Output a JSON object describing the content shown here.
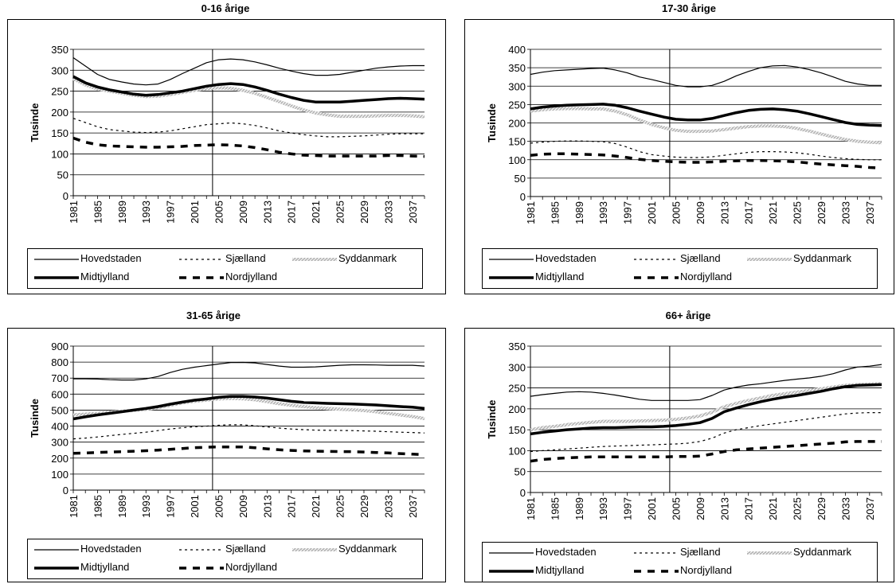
{
  "legend_labels": [
    "Hovedstaden",
    "Sjælland",
    "Syddanmark",
    "Midtjylland",
    "Nordjylland"
  ],
  "chart_data": [
    {
      "type": "line",
      "title": "0-16 årige",
      "ylabel": "Tusinde",
      "ylim": [
        0,
        350
      ],
      "yticks": [
        0,
        50,
        100,
        150,
        200,
        250,
        300,
        350
      ],
      "x_tick_labels": [
        "1981",
        "1985",
        "1989",
        "1993",
        "1997",
        "2001",
        "2005",
        "2009",
        "2013",
        "2017",
        "2021",
        "2025",
        "2029",
        "2033",
        "2037"
      ],
      "x": [
        1981,
        1983,
        1985,
        1987,
        1989,
        1991,
        1993,
        1995,
        1997,
        1999,
        2001,
        2003,
        2005,
        2007,
        2009,
        2011,
        2013,
        2015,
        2017,
        2019,
        2021,
        2023,
        2025,
        2027,
        2029,
        2031,
        2033,
        2035,
        2037,
        2039
      ],
      "marker_year": 2004,
      "series": [
        {
          "name": "Hovedstaden",
          "values": [
            330,
            310,
            290,
            278,
            272,
            267,
            265,
            267,
            278,
            292,
            305,
            318,
            325,
            327,
            325,
            320,
            313,
            305,
            298,
            292,
            288,
            288,
            290,
            295,
            300,
            305,
            308,
            310,
            311,
            311
          ]
        },
        {
          "name": "Sjælland",
          "values": [
            185,
            175,
            165,
            158,
            155,
            152,
            151,
            152,
            155,
            160,
            165,
            170,
            172,
            174,
            172,
            168,
            162,
            155,
            150,
            146,
            143,
            141,
            141,
            142,
            143,
            145,
            147,
            148,
            148,
            148
          ]
        },
        {
          "name": "Syddanmark",
          "values": [
            280,
            265,
            255,
            250,
            245,
            240,
            237,
            238,
            242,
            247,
            252,
            256,
            258,
            257,
            252,
            245,
            235,
            225,
            215,
            205,
            198,
            193,
            190,
            190,
            190,
            191,
            192,
            192,
            191,
            189
          ]
        },
        {
          "name": "Midtjylland",
          "values": [
            285,
            270,
            260,
            253,
            248,
            243,
            240,
            242,
            246,
            250,
            256,
            262,
            266,
            268,
            266,
            260,
            252,
            243,
            235,
            228,
            224,
            224,
            224,
            226,
            228,
            230,
            232,
            233,
            232,
            231
          ]
        },
        {
          "name": "Nordjylland",
          "values": [
            138,
            128,
            122,
            119,
            118,
            117,
            116,
            116,
            117,
            118,
            120,
            121,
            122,
            121,
            119,
            115,
            110,
            104,
            100,
            97,
            96,
            95,
            95,
            95,
            95,
            95,
            96,
            96,
            95,
            94
          ]
        }
      ]
    },
    {
      "type": "line",
      "title": "17-30 årige",
      "ylabel": "Tusinde",
      "ylim": [
        0,
        400
      ],
      "yticks": [
        0,
        50,
        100,
        150,
        200,
        250,
        300,
        350,
        400
      ],
      "x_tick_labels": [
        "1981",
        "1985",
        "1989",
        "1993",
        "1997",
        "2001",
        "2005",
        "2009",
        "2013",
        "2017",
        "2021",
        "2025",
        "2029",
        "2033",
        "2037"
      ],
      "x": [
        1981,
        1983,
        1985,
        1987,
        1989,
        1991,
        1993,
        1995,
        1997,
        1999,
        2001,
        2003,
        2005,
        2007,
        2009,
        2011,
        2013,
        2015,
        2017,
        2019,
        2021,
        2023,
        2025,
        2027,
        2029,
        2031,
        2033,
        2035,
        2037,
        2039
      ],
      "marker_year": 2004,
      "series": [
        {
          "name": "Hovedstaden",
          "values": [
            332,
            338,
            342,
            344,
            346,
            348,
            349,
            344,
            336,
            325,
            318,
            310,
            302,
            298,
            298,
            302,
            313,
            328,
            340,
            350,
            355,
            356,
            352,
            345,
            336,
            325,
            313,
            306,
            302,
            302
          ]
        },
        {
          "name": "Sjælland",
          "values": [
            145,
            148,
            150,
            151,
            151,
            150,
            149,
            144,
            134,
            122,
            114,
            110,
            107,
            106,
            106,
            108,
            112,
            116,
            120,
            122,
            122,
            121,
            119,
            115,
            110,
            106,
            103,
            101,
            100,
            100
          ]
        },
        {
          "name": "Syddanmark",
          "values": [
            232,
            236,
            238,
            239,
            239,
            238,
            238,
            232,
            222,
            208,
            196,
            187,
            180,
            177,
            177,
            178,
            182,
            186,
            190,
            192,
            192,
            190,
            185,
            178,
            170,
            162,
            155,
            150,
            148,
            146
          ]
        },
        {
          "name": "Midtjylland",
          "values": [
            238,
            243,
            246,
            248,
            249,
            250,
            251,
            248,
            241,
            232,
            224,
            216,
            210,
            208,
            208,
            212,
            220,
            228,
            234,
            237,
            238,
            236,
            232,
            225,
            217,
            209,
            201,
            196,
            194,
            193
          ]
        },
        {
          "name": "Nordjylland",
          "values": [
            112,
            115,
            116,
            116,
            115,
            114,
            113,
            110,
            106,
            101,
            98,
            96,
            94,
            93,
            93,
            94,
            96,
            97,
            98,
            98,
            97,
            96,
            94,
            91,
            88,
            86,
            84,
            82,
            79,
            77
          ]
        }
      ]
    },
    {
      "type": "line",
      "title": "31-65 årige",
      "ylabel": "Tusinde",
      "ylim": [
        0,
        900
      ],
      "yticks": [
        0,
        100,
        200,
        300,
        400,
        500,
        600,
        700,
        800,
        900
      ],
      "x_tick_labels": [
        "1981",
        "1985",
        "1989",
        "1993",
        "1997",
        "2001",
        "2005",
        "2009",
        "2013",
        "2017",
        "2021",
        "2025",
        "2029",
        "2033",
        "2037"
      ],
      "x": [
        1981,
        1983,
        1985,
        1987,
        1989,
        1991,
        1993,
        1995,
        1997,
        1999,
        2001,
        2003,
        2005,
        2007,
        2009,
        2011,
        2013,
        2015,
        2017,
        2019,
        2021,
        2023,
        2025,
        2027,
        2029,
        2031,
        2033,
        2035,
        2037,
        2039
      ],
      "marker_year": 2004,
      "series": [
        {
          "name": "Hovedstaden",
          "values": [
            695,
            695,
            694,
            690,
            688,
            688,
            695,
            710,
            735,
            755,
            768,
            778,
            788,
            797,
            798,
            795,
            785,
            775,
            768,
            768,
            770,
            775,
            780,
            783,
            783,
            782,
            780,
            780,
            780,
            775
          ]
        },
        {
          "name": "Sjælland",
          "values": [
            320,
            325,
            332,
            340,
            348,
            355,
            362,
            372,
            382,
            390,
            396,
            400,
            405,
            408,
            408,
            402,
            395,
            388,
            382,
            378,
            375,
            374,
            373,
            372,
            370,
            368,
            365,
            362,
            360,
            357
          ]
        },
        {
          "name": "Syddanmark",
          "values": [
            470,
            475,
            480,
            487,
            493,
            498,
            505,
            515,
            530,
            545,
            555,
            563,
            570,
            573,
            571,
            565,
            553,
            540,
            530,
            522,
            515,
            510,
            506,
            502,
            497,
            490,
            480,
            470,
            460,
            447
          ]
        },
        {
          "name": "Midtjylland",
          "values": [
            445,
            458,
            470,
            480,
            490,
            500,
            510,
            522,
            537,
            550,
            562,
            570,
            580,
            585,
            585,
            582,
            575,
            565,
            555,
            548,
            545,
            542,
            540,
            538,
            535,
            532,
            527,
            522,
            518,
            510
          ]
        },
        {
          "name": "Nordjylland",
          "values": [
            230,
            232,
            235,
            238,
            240,
            243,
            246,
            250,
            255,
            260,
            265,
            268,
            270,
            270,
            270,
            265,
            258,
            252,
            248,
            245,
            243,
            242,
            241,
            240,
            238,
            235,
            232,
            228,
            225,
            222
          ]
        }
      ]
    },
    {
      "type": "line",
      "title": "66+ årige",
      "ylabel": "Tusinde",
      "ylim": [
        0,
        350
      ],
      "yticks": [
        0,
        50,
        100,
        150,
        200,
        250,
        300,
        350
      ],
      "x_tick_labels": [
        "1981",
        "1985",
        "1989",
        "1993",
        "1997",
        "2001",
        "2005",
        "2009",
        "2013",
        "2017",
        "2021",
        "2025",
        "2029",
        "2033",
        "2037"
      ],
      "x": [
        1981,
        1983,
        1985,
        1987,
        1989,
        1991,
        1993,
        1995,
        1997,
        1999,
        2001,
        2003,
        2005,
        2007,
        2009,
        2011,
        2013,
        2015,
        2017,
        2019,
        2021,
        2023,
        2025,
        2027,
        2029,
        2031,
        2033,
        2035,
        2037,
        2039
      ],
      "marker_year": 2004,
      "series": [
        {
          "name": "Hovedstaden",
          "values": [
            230,
            234,
            237,
            240,
            241,
            240,
            237,
            233,
            228,
            223,
            220,
            220,
            220,
            220,
            222,
            232,
            245,
            252,
            257,
            260,
            264,
            268,
            271,
            274,
            278,
            284,
            293,
            300,
            302,
            306
          ]
        },
        {
          "name": "Sjælland",
          "values": [
            98,
            100,
            102,
            104,
            106,
            108,
            110,
            111,
            112,
            113,
            114,
            115,
            116,
            118,
            122,
            130,
            142,
            150,
            155,
            160,
            164,
            168,
            172,
            176,
            180,
            184,
            188,
            190,
            191,
            191
          ]
        },
        {
          "name": "Syddanmark",
          "values": [
            150,
            155,
            158,
            162,
            165,
            168,
            170,
            170,
            170,
            171,
            172,
            173,
            175,
            178,
            183,
            192,
            205,
            213,
            220,
            226,
            232,
            236,
            240,
            244,
            248,
            252,
            256,
            258,
            259,
            260
          ]
        },
        {
          "name": "Midtjylland",
          "values": [
            140,
            144,
            147,
            150,
            152,
            154,
            155,
            155,
            156,
            157,
            157,
            158,
            160,
            163,
            167,
            177,
            193,
            202,
            210,
            217,
            223,
            228,
            232,
            237,
            242,
            248,
            253,
            256,
            257,
            258
          ]
        },
        {
          "name": "Nordjylland",
          "values": [
            75,
            79,
            81,
            83,
            84,
            85,
            85,
            85,
            85,
            85,
            85,
            85,
            86,
            86,
            87,
            92,
            98,
            102,
            104,
            106,
            108,
            110,
            112,
            114,
            116,
            118,
            121,
            122,
            122,
            122
          ]
        }
      ]
    }
  ]
}
